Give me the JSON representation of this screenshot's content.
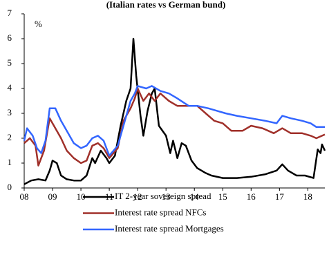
{
  "chart_data": {
    "type": "line",
    "title": "(Italian rates vs German bund)",
    "y_label": "%",
    "xlim": [
      2008,
      2018.6
    ],
    "xticks": [
      {
        "value": 2008,
        "label": "08"
      },
      {
        "value": 2009,
        "label": "09"
      },
      {
        "value": 2010,
        "label": "10"
      },
      {
        "value": 2011,
        "label": "11"
      },
      {
        "value": 2012,
        "label": "12"
      },
      {
        "value": 2013,
        "label": "13"
      },
      {
        "value": 2014,
        "label": "14"
      },
      {
        "value": 2015,
        "label": "15"
      },
      {
        "value": 2016,
        "label": "16"
      },
      {
        "value": 2017,
        "label": "17"
      },
      {
        "value": 2018,
        "label": "18"
      }
    ],
    "ylim": [
      0,
      7
    ],
    "yticks": [
      0,
      1,
      2,
      3,
      4,
      5,
      6,
      7
    ],
    "grid": false,
    "legend": "bottom",
    "series": [
      {
        "name": "IT 2-year sovereign spread",
        "color": "#000000",
        "x": [
          2008.0,
          2008.25,
          2008.5,
          2008.75,
          2008.9,
          2009.0,
          2009.15,
          2009.3,
          2009.5,
          2009.75,
          2010.0,
          2010.2,
          2010.4,
          2010.5,
          2010.7,
          2010.9,
          2011.0,
          2011.2,
          2011.4,
          2011.6,
          2011.75,
          2011.85,
          2011.95,
          2012.1,
          2012.2,
          2012.35,
          2012.5,
          2012.6,
          2012.75,
          2013.0,
          2013.15,
          2013.25,
          2013.4,
          2013.55,
          2013.7,
          2013.9,
          2014.1,
          2014.4,
          2014.6,
          2015.0,
          2015.5,
          2016.0,
          2016.5,
          2016.9,
          2017.1,
          2017.3,
          2017.6,
          2017.9,
          2018.2,
          2018.35,
          2018.45,
          2018.5,
          2018.6
        ],
        "values": [
          0.15,
          0.3,
          0.35,
          0.3,
          0.7,
          1.1,
          1.0,
          0.5,
          0.35,
          0.3,
          0.3,
          0.5,
          1.2,
          1.0,
          1.5,
          1.2,
          1.0,
          1.3,
          2.5,
          3.5,
          4.0,
          6.0,
          4.5,
          2.9,
          2.1,
          3.1,
          3.8,
          4.0,
          2.5,
          2.1,
          1.4,
          1.9,
          1.2,
          1.8,
          1.7,
          1.1,
          0.8,
          0.6,
          0.5,
          0.4,
          0.4,
          0.45,
          0.55,
          0.7,
          0.95,
          0.7,
          0.5,
          0.5,
          0.4,
          1.55,
          1.4,
          1.75,
          1.5
        ]
      },
      {
        "name": "Interest rate spread NFCs",
        "color": "#a0302a",
        "x": [
          2008.0,
          2008.2,
          2008.4,
          2008.5,
          2008.7,
          2008.9,
          2009.1,
          2009.3,
          2009.5,
          2009.75,
          2010.0,
          2010.2,
          2010.4,
          2010.6,
          2010.8,
          2011.0,
          2011.3,
          2011.5,
          2011.75,
          2011.9,
          2012.0,
          2012.2,
          2012.4,
          2012.6,
          2012.8,
          2013.1,
          2013.4,
          2013.8,
          2014.1,
          2014.4,
          2014.7,
          2015.0,
          2015.3,
          2015.7,
          2016.0,
          2016.4,
          2016.8,
          2017.1,
          2017.4,
          2017.8,
          2018.1,
          2018.3,
          2018.6
        ],
        "values": [
          1.8,
          2.0,
          1.7,
          0.9,
          1.5,
          2.8,
          2.4,
          2.0,
          1.5,
          1.2,
          1.0,
          1.1,
          1.7,
          1.8,
          1.6,
          1.2,
          1.6,
          2.7,
          3.2,
          3.6,
          4.0,
          3.5,
          3.8,
          3.5,
          3.8,
          3.5,
          3.3,
          3.3,
          3.3,
          3.0,
          2.7,
          2.6,
          2.3,
          2.3,
          2.5,
          2.4,
          2.2,
          2.4,
          2.2,
          2.2,
          2.1,
          2.0,
          2.15
        ]
      },
      {
        "name": "Interest rate spread Mortgages",
        "color": "#3366ff",
        "x": [
          2008.0,
          2008.1,
          2008.3,
          2008.45,
          2008.6,
          2008.75,
          2008.9,
          2009.1,
          2009.3,
          2009.5,
          2009.75,
          2010.0,
          2010.2,
          2010.4,
          2010.6,
          2010.8,
          2011.0,
          2011.3,
          2011.5,
          2011.75,
          2011.9,
          2012.0,
          2012.3,
          2012.5,
          2012.8,
          2013.1,
          2013.4,
          2013.8,
          2014.1,
          2014.5,
          2014.8,
          2015.1,
          2015.5,
          2016.0,
          2016.5,
          2016.9,
          2017.1,
          2017.4,
          2017.8,
          2018.1,
          2018.3,
          2018.6
        ],
        "values": [
          1.9,
          2.4,
          2.1,
          1.6,
          1.4,
          1.9,
          3.2,
          3.2,
          2.7,
          2.3,
          1.8,
          1.6,
          1.7,
          2.0,
          2.1,
          1.9,
          1.3,
          1.7,
          2.5,
          3.5,
          3.8,
          4.1,
          4.0,
          4.1,
          3.9,
          3.8,
          3.6,
          3.3,
          3.3,
          3.2,
          3.1,
          3.0,
          2.9,
          2.8,
          2.7,
          2.6,
          2.9,
          2.8,
          2.7,
          2.6,
          2.45,
          2.45
        ]
      }
    ]
  }
}
